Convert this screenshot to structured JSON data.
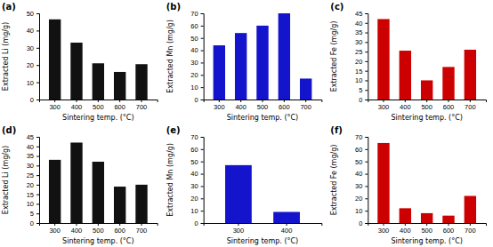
{
  "chart_data": [
    {
      "type": "bar",
      "title": "(a)",
      "x_label": "Sintering temp. (°C)",
      "y_label": "Extracted Li (mg/g)",
      "categories": [
        "300",
        "400",
        "500",
        "600",
        "700"
      ],
      "values": [
        46.5,
        33.0,
        21.0,
        16.0,
        20.5
      ],
      "color": "#111111",
      "ylim": [
        0,
        50
      ],
      "yticks": [
        0,
        10,
        20,
        30,
        40,
        50
      ],
      "grid": false
    },
    {
      "type": "bar",
      "title": "(b)",
      "x_label": "Sintering temp. (°C)",
      "y_label": "Extracted Mn (mg/g)",
      "categories": [
        "300",
        "400",
        "500",
        "600",
        "700"
      ],
      "values": [
        44.0,
        54.0,
        60.0,
        70.0,
        17.0
      ],
      "color": "#1414cc",
      "ylim": [
        0,
        70
      ],
      "yticks": [
        0,
        10,
        20,
        30,
        40,
        50,
        60,
        70
      ],
      "grid": false
    },
    {
      "type": "bar",
      "title": "(c)",
      "x_label": "Sintering temp. (°C)",
      "y_label": "Extracted Fe (mg/g)",
      "categories": [
        "300",
        "400",
        "500",
        "600",
        "700"
      ],
      "values": [
        42.0,
        25.5,
        10.0,
        17.0,
        26.0
      ],
      "color": "#cc0000",
      "ylim": [
        0,
        45
      ],
      "yticks": [
        0,
        5,
        10,
        15,
        20,
        25,
        30,
        35,
        40,
        45
      ],
      "grid": false
    },
    {
      "type": "bar",
      "title": "(d)",
      "x_label": "Sintering temp. (°C)",
      "y_label": "Extracted Li (mg/g)",
      "categories": [
        "300",
        "400",
        "500",
        "600",
        "700"
      ],
      "values": [
        33.0,
        42.0,
        32.0,
        19.0,
        20.0
      ],
      "color": "#111111",
      "ylim": [
        0,
        45
      ],
      "yticks": [
        0,
        5,
        10,
        15,
        20,
        25,
        30,
        35,
        40,
        45
      ],
      "grid": false
    },
    {
      "type": "bar",
      "title": "(e)",
      "x_label": "Sintering temp. (°C)",
      "y_label": "Extracted Mn (mg/g)",
      "categories": [
        "300",
        "400"
      ],
      "values": [
        47.0,
        9.0
      ],
      "color": "#1414cc",
      "ylim": [
        0,
        70
      ],
      "yticks": [
        0,
        10,
        20,
        30,
        40,
        50,
        60,
        70
      ],
      "grid": false
    },
    {
      "type": "bar",
      "title": "(f)",
      "x_label": "Sintering temp. (°C)",
      "y_label": "Extracted Fe (mg/g)",
      "categories": [
        "300",
        "400",
        "500",
        "600",
        "700"
      ],
      "values": [
        65.0,
        12.0,
        8.0,
        6.0,
        22.0
      ],
      "color": "#cc0000",
      "ylim": [
        0,
        70
      ],
      "yticks": [
        0,
        10,
        20,
        30,
        40,
        50,
        60,
        70
      ],
      "grid": false
    }
  ]
}
